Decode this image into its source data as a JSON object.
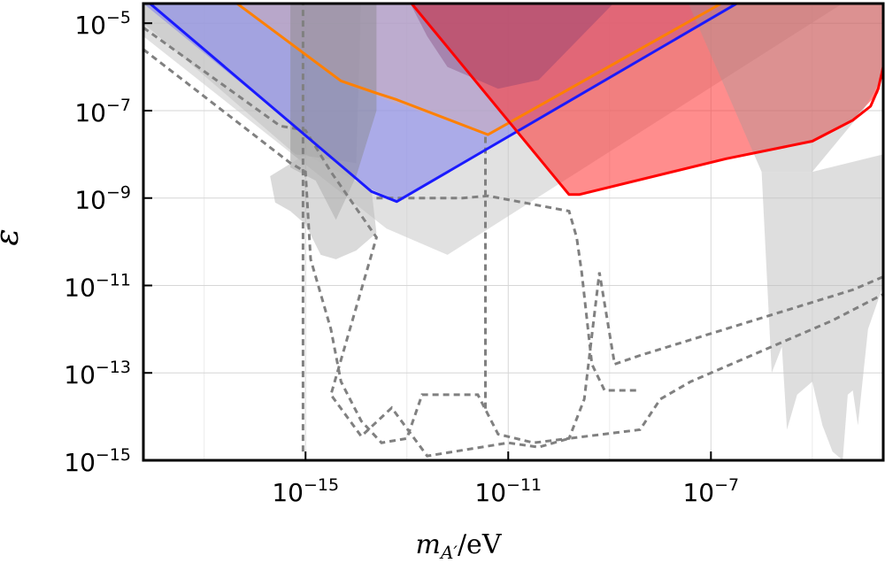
{
  "chart_data": {
    "type": "area",
    "xlabel": {
      "main": "m",
      "sub": "A′",
      "unit": "/eV"
    },
    "ylabel": "ε",
    "x_scale": "log",
    "y_scale": "log",
    "xlim_log10": [
      -18.2,
      -3.6
    ],
    "ylim_log10": [
      -15,
      -4.55
    ],
    "grid": true,
    "x_ticks": [
      {
        "log10": -15,
        "label_base": "10",
        "label_exp": "−15"
      },
      {
        "log10": -11,
        "label_base": "10",
        "label_exp": "−11"
      },
      {
        "log10": -7,
        "label_base": "10",
        "label_exp": "−7"
      }
    ],
    "y_ticks": [
      {
        "log10": -5,
        "label_base": "10",
        "label_exp": "−5"
      },
      {
        "log10": -7,
        "label_base": "10",
        "label_exp": "−7"
      },
      {
        "log10": -9,
        "label_base": "10",
        "label_exp": "−9"
      },
      {
        "log10": -11,
        "label_base": "10",
        "label_exp": "−11"
      },
      {
        "log10": -13,
        "label_base": "10",
        "label_exp": "−13"
      },
      {
        "log10": -15,
        "label_base": "10",
        "label_exp": "−15"
      }
    ],
    "minor_grid_x_log10": [
      -17,
      -13,
      -9,
      -5
    ],
    "minor_grid_y_log10": [
      -6,
      -8,
      -10,
      -12,
      -14
    ],
    "colors": {
      "blue": "#1a1aff",
      "orange": "#ff8000",
      "red": "#ff0000",
      "gray_fill": "#9a9a9a",
      "dashed": "#808080"
    },
    "regions": [
      {
        "id": "gray-wedge",
        "fill": "#c8c8c8",
        "opacity": 0.55,
        "points": [
          [
            -18.2,
            -4.4
          ],
          [
            -18.2,
            -5.3
          ],
          [
            -13.4,
            -9.7
          ],
          [
            -12.2,
            -10.3
          ],
          [
            -4.2,
            -4.4
          ]
        ]
      },
      {
        "id": "gray-band-upper-left",
        "fill": "#bbbbbb",
        "opacity": 0.45,
        "points": [
          [
            -18.2,
            -4.4
          ],
          [
            -18.2,
            -5.0
          ],
          [
            -15.2,
            -8.0
          ],
          [
            -14.0,
            -8.2
          ],
          [
            -13.9,
            -4.4
          ]
        ]
      },
      {
        "id": "blue-region",
        "fill": "#8080ee",
        "opacity": 0.55,
        "points": [
          [
            -18.2,
            -4.4
          ],
          [
            -18.2,
            -4.55
          ],
          [
            -13.7,
            -8.8
          ],
          [
            -13.2,
            -9.05
          ],
          [
            -6.3,
            -4.4
          ]
        ]
      },
      {
        "id": "orange-region",
        "fill": "#e0b0a0",
        "opacity": 0.35,
        "points": [
          [
            -16.5,
            -4.4
          ],
          [
            -14.2,
            -6.4
          ],
          [
            -13.3,
            -6.8
          ],
          [
            -11.4,
            -7.55
          ],
          [
            -6.6,
            -4.4
          ]
        ]
      },
      {
        "id": "dark-gray-band",
        "fill": "#888888",
        "opacity": 0.45,
        "points": [
          [
            -15.3,
            -4.4
          ],
          [
            -15.3,
            -8.3
          ],
          [
            -14.8,
            -8.6
          ],
          [
            -14.4,
            -9.5
          ],
          [
            -14.0,
            -8.5
          ],
          [
            -13.6,
            -7.0
          ],
          [
            -13.6,
            -4.4
          ]
        ]
      },
      {
        "id": "red-region",
        "fill": "#ff3030",
        "opacity": 0.55,
        "points": [
          [
            -13.0,
            -4.4
          ],
          [
            -9.8,
            -8.9
          ],
          [
            -9.6,
            -8.9
          ],
          [
            -6.7,
            -8.1
          ],
          [
            -5.0,
            -7.7
          ],
          [
            -4.2,
            -7.2
          ],
          [
            -3.7,
            -6.6
          ],
          [
            -3.6,
            -6.0
          ],
          [
            -3.6,
            -4.4
          ]
        ]
      },
      {
        "id": "purple-overlap",
        "fill": "#7a3a70",
        "opacity": 0.35,
        "points": [
          [
            -13.0,
            -4.4
          ],
          [
            -12.6,
            -5.3
          ],
          [
            -12.2,
            -6.0
          ],
          [
            -11.2,
            -6.5
          ],
          [
            -10.4,
            -6.3
          ],
          [
            -8.8,
            -4.4
          ]
        ]
      },
      {
        "id": "gray-right-top",
        "fill": "#9a9a9a",
        "opacity": 0.35,
        "points": [
          [
            -7.5,
            -4.4
          ],
          [
            -6.0,
            -8.4
          ],
          [
            -5.0,
            -8.4
          ],
          [
            -4.0,
            -7.0
          ],
          [
            -3.6,
            -6.2
          ],
          [
            -3.6,
            -4.4
          ]
        ]
      },
      {
        "id": "gray-spikes-right",
        "fill": "#bdbdbd",
        "opacity": 0.5,
        "points": [
          [
            -6.0,
            -8.4
          ],
          [
            -5.8,
            -13.0
          ],
          [
            -5.6,
            -12.4
          ],
          [
            -5.5,
            -14.3
          ],
          [
            -5.3,
            -13.5
          ],
          [
            -5.0,
            -13.2
          ],
          [
            -4.8,
            -14.2
          ],
          [
            -4.6,
            -14.8
          ],
          [
            -4.4,
            -15.0
          ],
          [
            -4.3,
            -13.5
          ],
          [
            -4.2,
            -13.4
          ],
          [
            -4.1,
            -14.2
          ],
          [
            -3.9,
            -12.0
          ],
          [
            -3.6,
            -11.0
          ],
          [
            -3.6,
            -8.0
          ],
          [
            -5.0,
            -8.4
          ]
        ]
      },
      {
        "id": "gray-spikes-left",
        "fill": "#bcbcbc",
        "opacity": 0.55,
        "points": [
          [
            -15.7,
            -8.5
          ],
          [
            -15.6,
            -9.1
          ],
          [
            -15.3,
            -9.3
          ],
          [
            -15.0,
            -9.6
          ],
          [
            -14.7,
            -10.3
          ],
          [
            -14.4,
            -10.4
          ],
          [
            -14.0,
            -10.2
          ],
          [
            -13.6,
            -9.8
          ],
          [
            -13.7,
            -8.8
          ],
          [
            -15.0,
            -8.0
          ]
        ]
      }
    ],
    "series": [
      {
        "name": "",
        "color": "#1a1aff",
        "width": 3,
        "points": [
          [
            -18.2,
            -4.42
          ],
          [
            -13.7,
            -8.85
          ],
          [
            -13.2,
            -9.08
          ],
          [
            -6.3,
            -4.42
          ]
        ]
      },
      {
        "name": "",
        "color": "#ff8000",
        "width": 3,
        "points": [
          [
            -16.5,
            -4.42
          ],
          [
            -14.3,
            -6.32
          ],
          [
            -13.6,
            -6.6
          ],
          [
            -13.2,
            -6.75
          ],
          [
            -11.4,
            -7.55
          ],
          [
            -6.6,
            -4.42
          ]
        ]
      },
      {
        "name": "",
        "color": "#ff0000",
        "width": 3,
        "points": [
          [
            -13.0,
            -4.42
          ],
          [
            -9.8,
            -8.92
          ],
          [
            -9.6,
            -8.92
          ],
          [
            -6.7,
            -8.1
          ],
          [
            -5.0,
            -7.7
          ],
          [
            -4.2,
            -7.22
          ],
          [
            -3.85,
            -6.9
          ],
          [
            -3.7,
            -6.5
          ],
          [
            -3.6,
            -6.0
          ]
        ]
      }
    ],
    "dashed": [
      {
        "id": "dashed-upper-left",
        "points": [
          [
            -18.2,
            -5.1
          ],
          [
            -15.5,
            -7.35
          ],
          [
            -15.0,
            -7.45
          ],
          [
            -14.5,
            -8.4
          ],
          [
            -13.6,
            -9.9
          ],
          [
            -14.5,
            -13.5
          ],
          [
            -13.9,
            -14.45
          ],
          [
            -13.3,
            -13.8
          ],
          [
            -12.6,
            -14.9
          ],
          [
            -11.0,
            -14.6
          ],
          [
            -10.4,
            -14.7
          ],
          [
            -9.8,
            -14.5
          ],
          [
            -8.4,
            -14.3
          ],
          [
            -8.0,
            -13.6
          ],
          [
            -7.4,
            -13.2
          ],
          [
            -4.6,
            -11.8
          ],
          [
            -3.6,
            -11.2
          ]
        ]
      },
      {
        "id": "dashed-lower-left",
        "points": [
          [
            -18.2,
            -5.6
          ],
          [
            -15.3,
            -8.2
          ],
          [
            -15.0,
            -8.4
          ],
          [
            -14.9,
            -10.4
          ],
          [
            -14.5,
            -12.0
          ],
          [
            -14.3,
            -13.2
          ],
          [
            -13.9,
            -14.1
          ],
          [
            -13.5,
            -14.6
          ],
          [
            -13.0,
            -14.5
          ],
          [
            -12.7,
            -13.5
          ],
          [
            -11.6,
            -13.5
          ],
          [
            -11.2,
            -14.4
          ],
          [
            -10.5,
            -14.6
          ],
          [
            -9.8,
            -14.5
          ],
          [
            -9.5,
            -13.6
          ],
          [
            -9.2,
            -10.7
          ],
          [
            -8.9,
            -12.8
          ],
          [
            -8.4,
            -12.6
          ],
          [
            -4.2,
            -11.1
          ],
          [
            -3.6,
            -10.8
          ]
        ]
      },
      {
        "id": "dashed-vertical-left",
        "points": [
          [
            -15.05,
            -4.45
          ],
          [
            -15.05,
            -14.9
          ]
        ]
      },
      {
        "id": "dashed-vertical-center",
        "points": [
          [
            -11.45,
            -7.6
          ],
          [
            -11.45,
            -13.9
          ]
        ]
      },
      {
        "id": "dashed-inner-loop",
        "points": [
          [
            -13.6,
            -9.0
          ],
          [
            -11.9,
            -9.0
          ],
          [
            -11.4,
            -8.95
          ],
          [
            -9.8,
            -9.3
          ],
          [
            -9.65,
            -9.9
          ],
          [
            -9.55,
            -10.7
          ],
          [
            -9.35,
            -12.8
          ],
          [
            -9.1,
            -13.4
          ],
          [
            -8.4,
            -13.4
          ]
        ]
      }
    ]
  }
}
